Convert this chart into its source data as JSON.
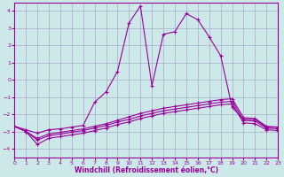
{
  "background_color": "#cce8e8",
  "grid_color": "#aaaacc",
  "line_color": "#990099",
  "xlabel": "Windchill (Refroidissement éolien,°C)",
  "xlim": [
    0,
    23
  ],
  "ylim": [
    -4.5,
    4.5
  ],
  "yticks": [
    -4,
    -3,
    -2,
    -1,
    0,
    1,
    2,
    3,
    4
  ],
  "xticks": [
    0,
    1,
    2,
    3,
    4,
    5,
    6,
    7,
    8,
    9,
    10,
    11,
    12,
    13,
    14,
    15,
    16,
    17,
    18,
    19,
    20,
    21,
    22,
    23
  ],
  "series": [
    {
      "x": [
        0,
        1,
        2,
        3,
        4,
        5,
        6,
        7,
        8,
        9,
        10,
        11,
        12,
        13,
        14,
        15,
        16,
        17,
        18,
        19,
        20,
        21,
        22,
        23
      ],
      "y": [
        -2.7,
        -2.9,
        -3.1,
        -2.9,
        -2.85,
        -2.75,
        -2.65,
        -1.3,
        -0.7,
        0.5,
        3.3,
        4.3,
        -0.35,
        2.65,
        2.8,
        3.85,
        3.5,
        2.5,
        1.4,
        -1.6,
        -2.3,
        -2.3,
        -2.75,
        -2.75
      ]
    },
    {
      "x": [
        0,
        1,
        2,
        3,
        4,
        5,
        6,
        7,
        8,
        9,
        10,
        11,
        12,
        13,
        14,
        15,
        16,
        17,
        18,
        19,
        20,
        21,
        22,
        23
      ],
      "y": [
        -2.7,
        -3.0,
        -3.4,
        -3.15,
        -3.05,
        -2.95,
        -2.85,
        -2.7,
        -2.55,
        -2.35,
        -2.15,
        -1.95,
        -1.8,
        -1.65,
        -1.55,
        -1.45,
        -1.35,
        -1.25,
        -1.15,
        -1.1,
        -2.2,
        -2.25,
        -2.7,
        -2.75
      ]
    },
    {
      "x": [
        0,
        1,
        2,
        3,
        4,
        5,
        6,
        7,
        8,
        9,
        10,
        11,
        12,
        13,
        14,
        15,
        16,
        17,
        18,
        19,
        20,
        21,
        22,
        23
      ],
      "y": [
        -2.7,
        -3.0,
        -3.5,
        -3.25,
        -3.15,
        -3.05,
        -2.95,
        -2.8,
        -2.65,
        -2.45,
        -2.3,
        -2.1,
        -1.95,
        -1.8,
        -1.7,
        -1.6,
        -1.5,
        -1.4,
        -1.3,
        -1.25,
        -2.35,
        -2.4,
        -2.8,
        -2.85
      ]
    },
    {
      "x": [
        0,
        1,
        2,
        3,
        4,
        5,
        6,
        7,
        8,
        9,
        10,
        11,
        12,
        13,
        14,
        15,
        16,
        17,
        18,
        19,
        20,
        21,
        22,
        23
      ],
      "y": [
        -2.7,
        -3.0,
        -3.75,
        -3.4,
        -3.3,
        -3.2,
        -3.1,
        -2.95,
        -2.8,
        -2.6,
        -2.45,
        -2.25,
        -2.1,
        -1.95,
        -1.85,
        -1.75,
        -1.65,
        -1.55,
        -1.45,
        -1.4,
        -2.5,
        -2.55,
        -2.9,
        -2.95
      ]
    }
  ]
}
